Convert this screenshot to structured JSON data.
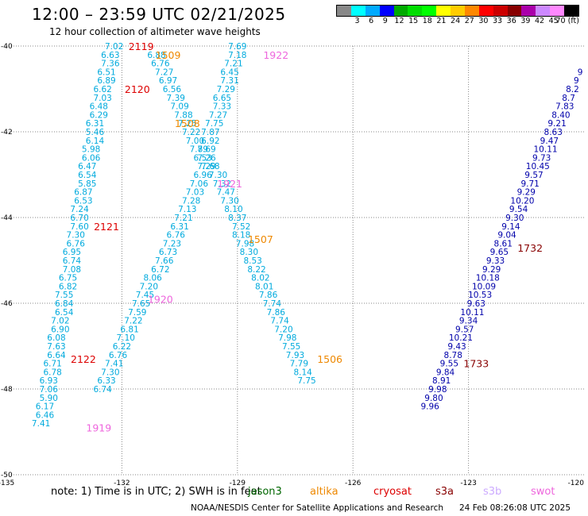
{
  "title": "12:00 – 23:59 UTC 02/21/2025",
  "subtitle": "12 hour collection of altimeter wave heights",
  "colorbar": {
    "colors": [
      "#888888",
      "#00ffff",
      "#00aaff",
      "#0000ff",
      "#00aa00",
      "#00dd00",
      "#00ff00",
      "#ffff00",
      "#ffcc00",
      "#ff8800",
      "#ff0000",
      "#cc0000",
      "#880000",
      "#aa00aa",
      "#cc88ff",
      "#ff88ff",
      "#000000"
    ],
    "labels": [
      "",
      "3",
      "6",
      "9",
      "12",
      "15",
      "18",
      "21",
      "24",
      "27",
      "30",
      "33",
      "36",
      "39",
      "42",
      "45",
      "70 (ft)"
    ]
  },
  "map": {
    "lon_range": [
      -135,
      -120
    ],
    "lat_range": [
      -50,
      -40
    ],
    "lon_ticks": [
      "-135",
      "-132",
      "-129",
      "-126",
      "-123",
      "-120"
    ],
    "lat_ticks": [
      "-40",
      "-42",
      "-44",
      "-46",
      "-48",
      "-50"
    ]
  },
  "tracks": [
    {
      "color": "#00aadd",
      "points": [
        {
          "lon": -132.2,
          "lat": -40.0,
          "v": "7.02"
        },
        {
          "lon": -132.3,
          "lat": -40.2,
          "v": "6.63"
        },
        {
          "lon": -132.3,
          "lat": -40.4,
          "v": "7.36"
        },
        {
          "lon": -132.4,
          "lat": -40.6,
          "v": "6.51"
        },
        {
          "lon": -132.4,
          "lat": -40.8,
          "v": "6.89"
        },
        {
          "lon": -132.5,
          "lat": -41.0,
          "v": "6.62"
        },
        {
          "lon": -132.5,
          "lat": -41.2,
          "v": "7.03"
        },
        {
          "lon": -132.6,
          "lat": -41.4,
          "v": "6.48"
        },
        {
          "lon": -132.6,
          "lat": -41.6,
          "v": "6.29"
        },
        {
          "lon": -132.7,
          "lat": -41.8,
          "v": "6.31"
        },
        {
          "lon": -132.7,
          "lat": -42.0,
          "v": "5.46"
        },
        {
          "lon": -132.7,
          "lat": -42.2,
          "v": "6.14"
        },
        {
          "lon": -132.8,
          "lat": -42.4,
          "v": "5.98"
        },
        {
          "lon": -132.8,
          "lat": -42.6,
          "v": "6.06"
        },
        {
          "lon": -132.9,
          "lat": -42.8,
          "v": "6.47"
        },
        {
          "lon": -132.9,
          "lat": -43.0,
          "v": "6.54"
        },
        {
          "lon": -132.9,
          "lat": -43.2,
          "v": "5.85"
        },
        {
          "lon": -133.0,
          "lat": -43.4,
          "v": "6.87"
        },
        {
          "lon": -133.0,
          "lat": -43.6,
          "v": "6.53"
        },
        {
          "lon": -133.1,
          "lat": -43.8,
          "v": "7.24"
        },
        {
          "lon": -133.1,
          "lat": -44.0,
          "v": "6.70"
        },
        {
          "lon": -133.1,
          "lat": -44.2,
          "v": "7.60"
        },
        {
          "lon": -133.2,
          "lat": -44.4,
          "v": "7.30"
        },
        {
          "lon": -133.2,
          "lat": -44.6,
          "v": "6.76"
        },
        {
          "lon": -133.3,
          "lat": -44.8,
          "v": "6.95"
        },
        {
          "lon": -133.3,
          "lat": -45.0,
          "v": "6.74"
        },
        {
          "lon": -133.3,
          "lat": -45.2,
          "v": "7.08"
        },
        {
          "lon": -133.4,
          "lat": -45.4,
          "v": "6.75"
        },
        {
          "lon": -133.4,
          "lat": -45.6,
          "v": "6.82"
        },
        {
          "lon": -133.5,
          "lat": -45.8,
          "v": "7.55"
        },
        {
          "lon": -133.5,
          "lat": -46.0,
          "v": "6.84"
        },
        {
          "lon": -133.5,
          "lat": -46.2,
          "v": "6.54"
        },
        {
          "lon": -133.6,
          "lat": -46.4,
          "v": "7.02"
        },
        {
          "lon": -133.6,
          "lat": -46.6,
          "v": "6.90"
        },
        {
          "lon": -133.7,
          "lat": -46.8,
          "v": "6.08"
        },
        {
          "lon": -133.7,
          "lat": -47.0,
          "v": "7.63"
        },
        {
          "lon": -133.7,
          "lat": -47.2,
          "v": "6.64"
        },
        {
          "lon": -133.8,
          "lat": -47.4,
          "v": "6.71"
        },
        {
          "lon": -133.8,
          "lat": -47.6,
          "v": "6.78"
        },
        {
          "lon": -133.9,
          "lat": -47.8,
          "v": "6.93"
        },
        {
          "lon": -133.9,
          "lat": -48.0,
          "v": "7.06"
        },
        {
          "lon": -133.9,
          "lat": -48.2,
          "v": "5.90"
        },
        {
          "lon": -134.0,
          "lat": -48.4,
          "v": "6.17"
        },
        {
          "lon": -134.0,
          "lat": -48.6,
          "v": "6.46"
        },
        {
          "lon": -134.1,
          "lat": -48.8,
          "v": "7.41"
        }
      ]
    },
    {
      "color": "#00aadd",
      "points": [
        {
          "lon": -131.1,
          "lat": -40.2,
          "v": "6.88"
        },
        {
          "lon": -131.0,
          "lat": -40.4,
          "v": "6.76"
        },
        {
          "lon": -130.9,
          "lat": -40.6,
          "v": "7.27"
        },
        {
          "lon": -130.8,
          "lat": -40.8,
          "v": "6.97"
        },
        {
          "lon": -130.7,
          "lat": -41.0,
          "v": "6.56"
        },
        {
          "lon": -130.6,
          "lat": -41.2,
          "v": "7.39"
        },
        {
          "lon": -130.5,
          "lat": -41.4,
          "v": "7.09"
        },
        {
          "lon": -130.4,
          "lat": -41.6,
          "v": "7.88"
        },
        {
          "lon": -130.3,
          "lat": -41.8,
          "v": "7.25"
        },
        {
          "lon": -130.2,
          "lat": -42.0,
          "v": "7.22"
        },
        {
          "lon": -130.1,
          "lat": -42.2,
          "v": "7.00"
        },
        {
          "lon": -130.0,
          "lat": -42.4,
          "v": "7.89"
        },
        {
          "lon": -129.9,
          "lat": -42.6,
          "v": "6.53"
        },
        {
          "lon": -129.8,
          "lat": -42.8,
          "v": "7.29"
        },
        {
          "lon": -129.9,
          "lat": -43.0,
          "v": "6.96"
        },
        {
          "lon": -130.0,
          "lat": -43.2,
          "v": "7.06"
        },
        {
          "lon": -130.1,
          "lat": -43.4,
          "v": "7.03"
        },
        {
          "lon": -130.2,
          "lat": -43.6,
          "v": "7.28"
        },
        {
          "lon": -130.3,
          "lat": -43.8,
          "v": "7.13"
        },
        {
          "lon": -130.4,
          "lat": -44.0,
          "v": "7.21"
        },
        {
          "lon": -130.5,
          "lat": -44.2,
          "v": "6.31"
        },
        {
          "lon": -130.6,
          "lat": -44.4,
          "v": "6.76"
        },
        {
          "lon": -130.7,
          "lat": -44.6,
          "v": "7.23"
        },
        {
          "lon": -130.8,
          "lat": -44.8,
          "v": "6.73"
        },
        {
          "lon": -130.9,
          "lat": -45.0,
          "v": "7.66"
        },
        {
          "lon": -131.0,
          "lat": -45.2,
          "v": "6.72"
        },
        {
          "lon": -131.2,
          "lat": -45.4,
          "v": "8.06"
        },
        {
          "lon": -131.3,
          "lat": -45.6,
          "v": "7.20"
        },
        {
          "lon": -131.4,
          "lat": -45.8,
          "v": "7.45"
        },
        {
          "lon": -131.5,
          "lat": -46.0,
          "v": "7.65"
        },
        {
          "lon": -131.6,
          "lat": -46.2,
          "v": "7.59"
        },
        {
          "lon": -131.7,
          "lat": -46.4,
          "v": "7.22"
        },
        {
          "lon": -131.8,
          "lat": -46.6,
          "v": "6.81"
        },
        {
          "lon": -131.9,
          "lat": -46.8,
          "v": "7.10"
        },
        {
          "lon": -132.0,
          "lat": -47.0,
          "v": "6.22"
        },
        {
          "lon": -132.1,
          "lat": -47.2,
          "v": "6.76"
        },
        {
          "lon": -132.2,
          "lat": -47.4,
          "v": "7.41"
        },
        {
          "lon": -132.3,
          "lat": -47.6,
          "v": "7.30"
        },
        {
          "lon": -132.4,
          "lat": -47.8,
          "v": "6.33"
        },
        {
          "lon": -132.5,
          "lat": -48.0,
          "v": "6.74"
        }
      ]
    },
    {
      "color": "#00aadd",
      "points": [
        {
          "lon": -129.0,
          "lat": -40.0,
          "v": "7.69"
        },
        {
          "lon": -129.0,
          "lat": -40.2,
          "v": "7.18"
        },
        {
          "lon": -129.1,
          "lat": -40.4,
          "v": "7.21"
        },
        {
          "lon": -129.2,
          "lat": -40.6,
          "v": "6.45"
        },
        {
          "lon": -129.2,
          "lat": -40.8,
          "v": "7.31"
        },
        {
          "lon": -129.3,
          "lat": -41.0,
          "v": "7.29"
        },
        {
          "lon": -129.4,
          "lat": -41.2,
          "v": "6.65"
        },
        {
          "lon": -129.4,
          "lat": -41.4,
          "v": "7.33"
        },
        {
          "lon": -129.5,
          "lat": -41.6,
          "v": "7.27"
        },
        {
          "lon": -129.6,
          "lat": -41.8,
          "v": "7.75"
        },
        {
          "lon": -129.7,
          "lat": -42.0,
          "v": "7.87"
        },
        {
          "lon": -129.7,
          "lat": -42.2,
          "v": "6.92"
        },
        {
          "lon": -129.8,
          "lat": -42.4,
          "v": "7.69"
        },
        {
          "lon": -129.8,
          "lat": -42.6,
          "v": "7.26"
        },
        {
          "lon": -129.7,
          "lat": -42.8,
          "v": "7.68"
        },
        {
          "lon": -129.5,
          "lat": -43.0,
          "v": "7.30"
        },
        {
          "lon": -129.4,
          "lat": -43.2,
          "v": "7.32"
        },
        {
          "lon": -129.3,
          "lat": -43.4,
          "v": "7.47"
        },
        {
          "lon": -129.2,
          "lat": -43.6,
          "v": "7.30"
        },
        {
          "lon": -129.1,
          "lat": -43.8,
          "v": "8.10"
        },
        {
          "lon": -129.0,
          "lat": -44.0,
          "v": "8.37"
        },
        {
          "lon": -128.9,
          "lat": -44.2,
          "v": "7.52"
        },
        {
          "lon": -128.9,
          "lat": -44.4,
          "v": "8.18"
        },
        {
          "lon": -128.8,
          "lat": -44.6,
          "v": "7.98"
        },
        {
          "lon": -128.7,
          "lat": -44.8,
          "v": "8.30"
        },
        {
          "lon": -128.6,
          "lat": -45.0,
          "v": "8.53"
        },
        {
          "lon": -128.5,
          "lat": -45.2,
          "v": "8.22"
        },
        {
          "lon": -128.4,
          "lat": -45.4,
          "v": "8.02"
        },
        {
          "lon": -128.3,
          "lat": -45.6,
          "v": "8.01"
        },
        {
          "lon": -128.2,
          "lat": -45.8,
          "v": "7.86"
        },
        {
          "lon": -128.1,
          "lat": -46.0,
          "v": "7.74"
        },
        {
          "lon": -128.0,
          "lat": -46.2,
          "v": "7.86"
        },
        {
          "lon": -127.9,
          "lat": -46.4,
          "v": "7.74"
        },
        {
          "lon": -127.8,
          "lat": -46.6,
          "v": "7.20"
        },
        {
          "lon": -127.7,
          "lat": -46.8,
          "v": "7.98"
        },
        {
          "lon": -127.6,
          "lat": -47.0,
          "v": "7.55"
        },
        {
          "lon": -127.5,
          "lat": -47.2,
          "v": "7.93"
        },
        {
          "lon": -127.4,
          "lat": -47.4,
          "v": "7.79"
        },
        {
          "lon": -127.3,
          "lat": -47.6,
          "v": "8.14"
        },
        {
          "lon": -127.2,
          "lat": -47.8,
          "v": "7.75"
        }
      ]
    },
    {
      "color": "#0000aa",
      "points": [
        {
          "lon": -120.1,
          "lat": -40.6,
          "v": "9"
        },
        {
          "lon": -120.2,
          "lat": -40.8,
          "v": "9"
        },
        {
          "lon": -120.3,
          "lat": -41.0,
          "v": "8.2"
        },
        {
          "lon": -120.4,
          "lat": -41.2,
          "v": "8.7"
        },
        {
          "lon": -120.5,
          "lat": -41.4,
          "v": "7.83"
        },
        {
          "lon": -120.6,
          "lat": -41.6,
          "v": "8.40"
        },
        {
          "lon": -120.7,
          "lat": -41.8,
          "v": "9.21"
        },
        {
          "lon": -120.8,
          "lat": -42.0,
          "v": "8.63"
        },
        {
          "lon": -120.9,
          "lat": -42.2,
          "v": "9.47"
        },
        {
          "lon": -121.0,
          "lat": -42.4,
          "v": "10.11"
        },
        {
          "lon": -121.1,
          "lat": -42.6,
          "v": "9.73"
        },
        {
          "lon": -121.2,
          "lat": -42.8,
          "v": "10.45"
        },
        {
          "lon": -121.3,
          "lat": -43.0,
          "v": "9.57"
        },
        {
          "lon": -121.4,
          "lat": -43.2,
          "v": "9.71"
        },
        {
          "lon": -121.5,
          "lat": -43.4,
          "v": "9.29"
        },
        {
          "lon": -121.6,
          "lat": -43.6,
          "v": "10.20"
        },
        {
          "lon": -121.7,
          "lat": -43.8,
          "v": "9.54"
        },
        {
          "lon": -121.8,
          "lat": -44.0,
          "v": "9.30"
        },
        {
          "lon": -121.9,
          "lat": -44.2,
          "v": "9.14"
        },
        {
          "lon": -122.0,
          "lat": -44.4,
          "v": "9.04"
        },
        {
          "lon": -122.1,
          "lat": -44.6,
          "v": "8.61"
        },
        {
          "lon": -122.2,
          "lat": -44.8,
          "v": "9.65"
        },
        {
          "lon": -122.3,
          "lat": -45.0,
          "v": "9.33"
        },
        {
          "lon": -122.4,
          "lat": -45.2,
          "v": "9.29"
        },
        {
          "lon": -122.5,
          "lat": -45.4,
          "v": "10.18"
        },
        {
          "lon": -122.6,
          "lat": -45.6,
          "v": "10.09"
        },
        {
          "lon": -122.7,
          "lat": -45.8,
          "v": "10.53"
        },
        {
          "lon": -122.8,
          "lat": -46.0,
          "v": "9.63"
        },
        {
          "lon": -122.9,
          "lat": -46.2,
          "v": "10.11"
        },
        {
          "lon": -123.0,
          "lat": -46.4,
          "v": "9.34"
        },
        {
          "lon": -123.1,
          "lat": -46.6,
          "v": "9.57"
        },
        {
          "lon": -123.2,
          "lat": -46.8,
          "v": "10.21"
        },
        {
          "lon": -123.3,
          "lat": -47.0,
          "v": "9.43"
        },
        {
          "lon": -123.4,
          "lat": -47.2,
          "v": "8.78"
        },
        {
          "lon": -123.5,
          "lat": -47.4,
          "v": "9.55"
        },
        {
          "lon": -123.6,
          "lat": -47.6,
          "v": "9.84"
        },
        {
          "lon": -123.7,
          "lat": -47.8,
          "v": "8.91"
        },
        {
          "lon": -123.8,
          "lat": -48.0,
          "v": "9.98"
        },
        {
          "lon": -123.9,
          "lat": -48.2,
          "v": "9.80"
        },
        {
          "lon": -124.0,
          "lat": -48.4,
          "v": "9.96"
        }
      ]
    }
  ],
  "time_labels": [
    {
      "text": "2119",
      "color": "#dd0000",
      "lon": -131.5,
      "lat": -40.0
    },
    {
      "text": "1509",
      "color": "#ee8800",
      "lon": -130.8,
      "lat": -40.2
    },
    {
      "text": "1922",
      "color": "#ee66dd",
      "lon": -128.0,
      "lat": -40.2
    },
    {
      "text": "2120",
      "color": "#dd0000",
      "lon": -131.6,
      "lat": -41.0
    },
    {
      "text": "1508",
      "color": "#ee8800",
      "lon": -130.3,
      "lat": -41.8
    },
    {
      "text": "1921",
      "color": "#ee66dd",
      "lon": -129.2,
      "lat": -43.2
    },
    {
      "text": "2121",
      "color": "#dd0000",
      "lon": -132.4,
      "lat": -44.2
    },
    {
      "text": "1507",
      "color": "#ee8800",
      "lon": -128.4,
      "lat": -44.5
    },
    {
      "text": "1732",
      "color": "#880000",
      "lon": -121.4,
      "lat": -44.7
    },
    {
      "text": "1920",
      "color": "#ee66dd",
      "lon": -131.0,
      "lat": -45.9
    },
    {
      "text": "2122",
      "color": "#dd0000",
      "lon": -133.0,
      "lat": -47.3
    },
    {
      "text": "1506",
      "color": "#ee8800",
      "lon": -126.6,
      "lat": -47.3
    },
    {
      "text": "1733",
      "color": "#880000",
      "lon": -122.8,
      "lat": -47.4
    },
    {
      "text": "1919",
      "color": "#ee66dd",
      "lon": -132.6,
      "lat": -48.9
    }
  ],
  "note": "note:  1) Time is in UTC;  2) SWH is in feet",
  "legend": [
    {
      "text": "jason3",
      "color": "#006600",
      "x": 312
    },
    {
      "text": "altika",
      "color": "#ee8800",
      "x": 390
    },
    {
      "text": "cryosat",
      "color": "#dd0000",
      "x": 470
    },
    {
      "text": "s3a",
      "color": "#880000",
      "x": 548
    },
    {
      "text": "s3b",
      "color": "#ccaaff",
      "x": 608
    },
    {
      "text": "swot",
      "color": "#ee66dd",
      "x": 668
    }
  ],
  "footer": {
    "org": "NOAA/NESDIS Center for Satellite Applications and Research",
    "timestamp": "24 Feb 08:26:08 UTC 2025"
  }
}
